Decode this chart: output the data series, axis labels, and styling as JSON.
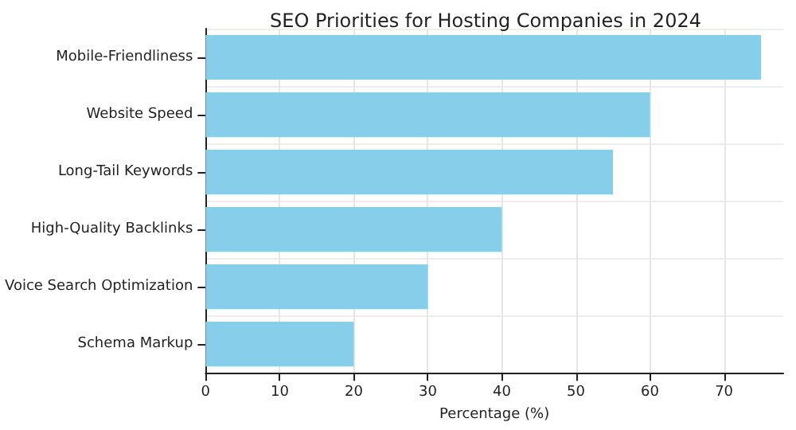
{
  "chart_data": {
    "type": "bar",
    "orientation": "horizontal",
    "title": "SEO Priorities for Hosting Companies in 2024",
    "xlabel": "Percentage (%)",
    "categories": [
      "Mobile-Friendliness",
      "Website Speed",
      "Long-Tail Keywords",
      "High-Quality Backlinks",
      "Voice Search Optimization",
      "Schema Markup"
    ],
    "values": [
      75,
      60,
      55,
      40,
      30,
      20
    ],
    "color": "#87ceeb",
    "xlim": [
      0,
      78
    ],
    "xticks": [
      0,
      10,
      20,
      30,
      40,
      50,
      60,
      70
    ],
    "grid": true
  }
}
